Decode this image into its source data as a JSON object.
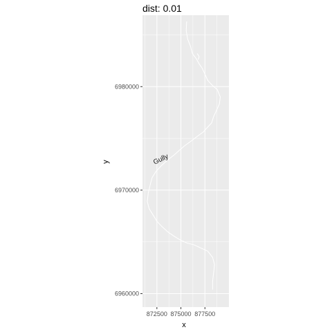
{
  "chart_data": {
    "type": "line",
    "title": "dist: 0.01",
    "xlabel": "x",
    "ylabel": "y",
    "xlim": [
      871000,
      880000
    ],
    "ylim": [
      6958700,
      6986900
    ],
    "x_ticks": [
      {
        "value": 872500,
        "label": "872500"
      },
      {
        "value": 875000,
        "label": "875000"
      },
      {
        "value": 877500,
        "label": "877500"
      }
    ],
    "y_ticks": [
      {
        "value": 6960000,
        "label": "6960000"
      },
      {
        "value": 6970000,
        "label": "6970000"
      },
      {
        "value": 6980000,
        "label": "6980000"
      }
    ],
    "grid": true,
    "annotation": {
      "text": "Gully",
      "x": 873000,
      "y": 6972800,
      "rotation": -25
    },
    "series": [
      {
        "color": "#ffffff",
        "points": [
          [
            875600,
            6986300
          ],
          [
            875550,
            6985400
          ],
          [
            875700,
            6984600
          ],
          [
            876000,
            6983900
          ],
          [
            876200,
            6983200
          ],
          [
            876600,
            6982700
          ],
          [
            876900,
            6982200
          ],
          [
            877200,
            6981800
          ],
          [
            877500,
            6981200
          ],
          [
            877800,
            6980600
          ],
          [
            878300,
            6980100
          ],
          [
            878800,
            6979700
          ],
          [
            879100,
            6979000
          ],
          [
            879000,
            6978300
          ],
          [
            878700,
            6977700
          ],
          [
            878400,
            6977100
          ],
          [
            878200,
            6976500
          ],
          [
            877800,
            6976100
          ],
          [
            877300,
            6975600
          ],
          [
            876700,
            6975200
          ],
          [
            876000,
            6974700
          ],
          [
            875400,
            6974300
          ],
          [
            874900,
            6973900
          ],
          [
            874300,
            6973400
          ],
          [
            873600,
            6972900
          ],
          [
            873000,
            6972400
          ],
          [
            872400,
            6971800
          ],
          [
            872000,
            6971200
          ],
          [
            871800,
            6970500
          ],
          [
            871600,
            6969700
          ],
          [
            871500,
            6968900
          ],
          [
            871700,
            6968200
          ],
          [
            872100,
            6967600
          ],
          [
            872500,
            6967000
          ],
          [
            873000,
            6966500
          ],
          [
            873600,
            6966000
          ],
          [
            874200,
            6965600
          ],
          [
            874900,
            6965200
          ],
          [
            875600,
            6964900
          ],
          [
            876400,
            6964700
          ],
          [
            877100,
            6964400
          ],
          [
            877800,
            6964100
          ],
          [
            878300,
            6963500
          ],
          [
            878500,
            6962800
          ],
          [
            878400,
            6962000
          ],
          [
            878300,
            6961200
          ],
          [
            878300,
            6960400
          ]
        ]
      },
      {
        "color": "#ffffff",
        "points": [
          [
            876700,
            6983200
          ],
          [
            876900,
            6982900
          ],
          [
            876800,
            6982600
          ]
        ]
      }
    ]
  }
}
